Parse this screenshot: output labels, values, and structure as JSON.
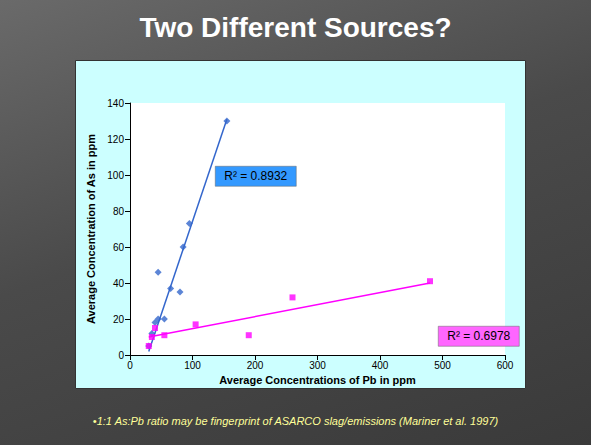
{
  "chart_data": {
    "type": "scatter",
    "title": "Two Different Sources?",
    "x_label": "Average Concentrations of Pb in ppm",
    "y_label": "Average Concentration of As in ppm",
    "footnote": "•1:1 As:Pb ratio may be fingerprint of ASARCO slag/emissions (Mariner et al. 1997)",
    "xlim": [
      0,
      600
    ],
    "xticks": [
      0,
      100,
      200,
      300,
      400,
      500,
      600
    ],
    "ylim": [
      0,
      140
    ],
    "yticks": [
      0,
      20,
      40,
      60,
      80,
      100,
      120,
      140
    ],
    "grid": false,
    "series": [
      {
        "color": "#3366cc",
        "marker": "diamond",
        "x": [
          30,
          35,
          40,
          45,
          45,
          55,
          65,
          80,
          85,
          95,
          155
        ],
        "values": [
          5,
          12,
          18,
          20,
          46,
          20,
          37,
          35,
          60,
          73,
          130
        ],
        "trendline": {
          "x": [
            30,
            155
          ],
          "values": [
            2,
            131
          ]
        },
        "annotation": {
          "text": "R² = 0.8932",
          "color": "#3399ff"
        }
      },
      {
        "color": "#ff00ff",
        "marker": "square",
        "x": [
          30,
          35,
          40,
          55,
          105,
          190,
          260,
          480
        ],
        "values": [
          5,
          10,
          15,
          11,
          17,
          11,
          32,
          41
        ],
        "trendline": {
          "x": [
            30,
            480
          ],
          "values": [
            10,
            40
          ]
        },
        "annotation": {
          "text": "R² = 0.6978",
          "color": "#ff66ff"
        }
      }
    ]
  }
}
